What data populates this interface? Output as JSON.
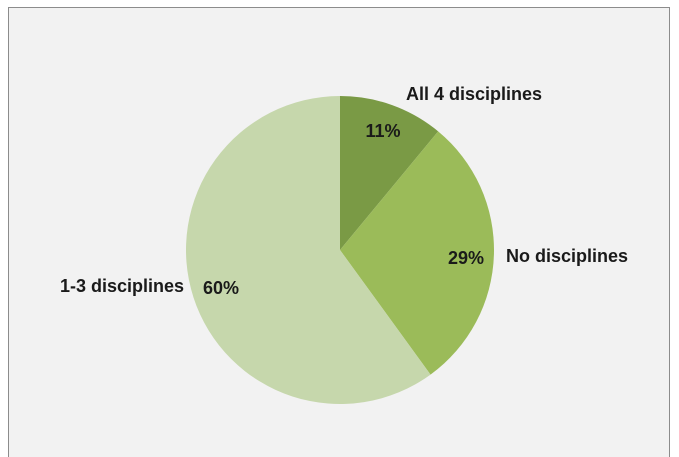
{
  "chart_data": {
    "type": "pie",
    "title": "",
    "slices": [
      {
        "label": "All 4 disciplines",
        "value": 11,
        "value_label": "11%",
        "color": "#7a9a45"
      },
      {
        "label": "No disciplines",
        "value": 29,
        "value_label": "29%",
        "color": "#9bbb59"
      },
      {
        "label": "1-3 disciplines",
        "value": 60,
        "value_label": "60%",
        "color": "#c6d7ac"
      }
    ],
    "start_angle_deg": 0,
    "direction": "clockwise",
    "legend": "none",
    "label_placement": "outside"
  },
  "colors": {
    "background": "#f2f2f2",
    "border": "#8c8c8c",
    "text": "#1a1a1a"
  }
}
